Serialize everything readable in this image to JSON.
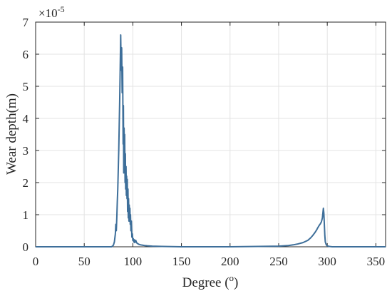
{
  "chart_data": {
    "type": "line",
    "title": "",
    "xlabel": "Degree (",
    "xlabel_sup": "o",
    "xlabel_end": ")",
    "ylabel": "Wear depth(m)",
    "y_exponent_base": "×10",
    "y_exponent_power": "-5",
    "xlim": [
      0,
      360
    ],
    "ylim": [
      0,
      7
    ],
    "x_ticks": [
      0,
      50,
      100,
      150,
      200,
      250,
      300,
      350
    ],
    "y_ticks": [
      0,
      1,
      2,
      3,
      4,
      5,
      6,
      7
    ],
    "grid": true,
    "series_color": "#3e6f9a",
    "series": [
      {
        "x": [
          0,
          50,
          78,
          79,
          80,
          81,
          82,
          82.5,
          83,
          83.5,
          84,
          84.5,
          85,
          85.5,
          86,
          86.5,
          87,
          87.5,
          88,
          88.5,
          89,
          89.5,
          90,
          90.3,
          90.6,
          91,
          91.3,
          91.6,
          92,
          92.3,
          92.6,
          93,
          93.3,
          93.6,
          94,
          94.3,
          94.6,
          95,
          95.3,
          95.6,
          96,
          96.3,
          96.6,
          97,
          97.3,
          97.6,
          98,
          98.5,
          99,
          99.5,
          100,
          100.5,
          101,
          101.5,
          102,
          103,
          104,
          105,
          106,
          108,
          110,
          112,
          115,
          120,
          130,
          140,
          150,
          200,
          250,
          260,
          265,
          270,
          275,
          280,
          283,
          285,
          287,
          289,
          290,
          291,
          292,
          293,
          294,
          295,
          296,
          296.5,
          297,
          297.5,
          298,
          299,
          300,
          302,
          305,
          310,
          320,
          340,
          360
        ],
        "y": [
          0,
          0,
          0,
          0.02,
          0.05,
          0.15,
          0.4,
          0.7,
          0.5,
          0.9,
          1.4,
          1.8,
          2.4,
          3.0,
          3.8,
          4.6,
          5.6,
          6.6,
          5.5,
          6.2,
          4.8,
          5.6,
          3.2,
          4.4,
          2.3,
          3.7,
          2.6,
          3.5,
          2.0,
          2.9,
          1.8,
          2.5,
          1.6,
          2.2,
          1.5,
          2.1,
          1.1,
          1.8,
          0.9,
          1.5,
          0.8,
          1.3,
          0.9,
          1.2,
          0.7,
          1.0,
          0.5,
          0.8,
          0.3,
          0.4,
          0.2,
          0.25,
          0.15,
          0.22,
          0.13,
          0.2,
          0.12,
          0.1,
          0.08,
          0.06,
          0.05,
          0.04,
          0.03,
          0.02,
          0.01,
          0.005,
          0,
          0,
          0.02,
          0.04,
          0.06,
          0.09,
          0.13,
          0.2,
          0.28,
          0.35,
          0.43,
          0.52,
          0.58,
          0.63,
          0.68,
          0.72,
          0.78,
          0.9,
          1.2,
          1.05,
          0.7,
          0.35,
          0.15,
          0.06,
          0.03,
          0.01,
          0,
          0,
          0,
          0,
          0
        ]
      }
    ]
  }
}
